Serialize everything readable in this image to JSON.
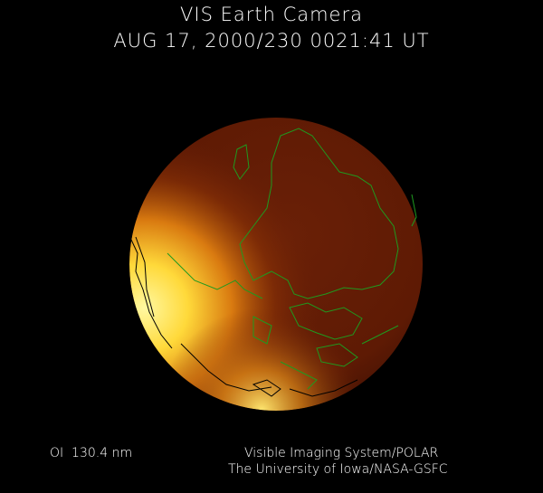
{
  "header": {
    "title": "VIS Earth Camera",
    "timestamp": "AUG 17, 2000/230 0021:41 UT"
  },
  "footer": {
    "filter": "OI  130.4 nm",
    "instrument": "Visible Imaging System/POLAR",
    "institution": "The University of Iowa/NASA-GSFC"
  },
  "image": {
    "subject": "earth-disk-auroral-emission",
    "colors": {
      "background": "#000000",
      "disk_dim": "#6a1d04",
      "aurora_bright": "#fff27a",
      "coastline_day": "#1f9a1f",
      "coastline_night": "#000000"
    }
  }
}
